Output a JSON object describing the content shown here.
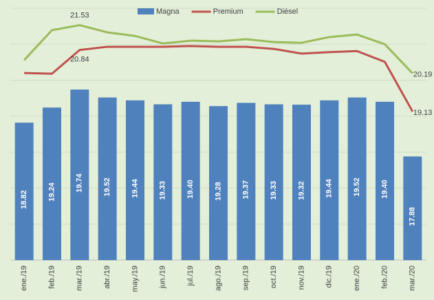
{
  "chart_data": {
    "type": "bar",
    "categories": [
      "ene./19",
      "feb./19",
      "mar./19",
      "abr./19",
      "may./19",
      "jun./19",
      "jul./19",
      "ago./19",
      "sep./19",
      "oct./19",
      "nov./19",
      "dic./19",
      "ene./20",
      "feb./20",
      "mar./20"
    ],
    "series": [
      {
        "name": "Magna",
        "type": "bar",
        "color": "#4f81bd",
        "values": [
          18.82,
          19.24,
          19.74,
          19.52,
          19.44,
          19.33,
          19.4,
          19.28,
          19.37,
          19.33,
          19.32,
          19.44,
          19.52,
          19.4,
          17.88
        ]
      },
      {
        "name": "Premium",
        "type": "line",
        "color": "#c0504d",
        "values": [
          20.2,
          20.18,
          20.84,
          20.93,
          20.93,
          20.93,
          20.95,
          20.93,
          20.93,
          20.87,
          20.74,
          20.78,
          20.81,
          20.51,
          19.13
        ],
        "value_labels": [
          null,
          null,
          "20.84",
          null,
          null,
          null,
          null,
          null,
          null,
          null,
          null,
          null,
          null,
          null,
          "19.13"
        ]
      },
      {
        "name": "Diésel",
        "type": "line",
        "color": "#9bbb59",
        "values": [
          20.56,
          21.39,
          21.53,
          21.33,
          21.23,
          21.02,
          21.1,
          21.08,
          21.14,
          21.06,
          21.04,
          21.2,
          21.27,
          21.0,
          20.19
        ],
        "value_labels": [
          null,
          null,
          "21.53",
          null,
          null,
          null,
          null,
          null,
          null,
          null,
          null,
          null,
          null,
          null,
          "20.19"
        ]
      }
    ],
    "ylim": [
      15,
      22
    ],
    "yticks": [
      15,
      16,
      17,
      18,
      19,
      20,
      21,
      22
    ],
    "grid": true,
    "legend": "top"
  }
}
